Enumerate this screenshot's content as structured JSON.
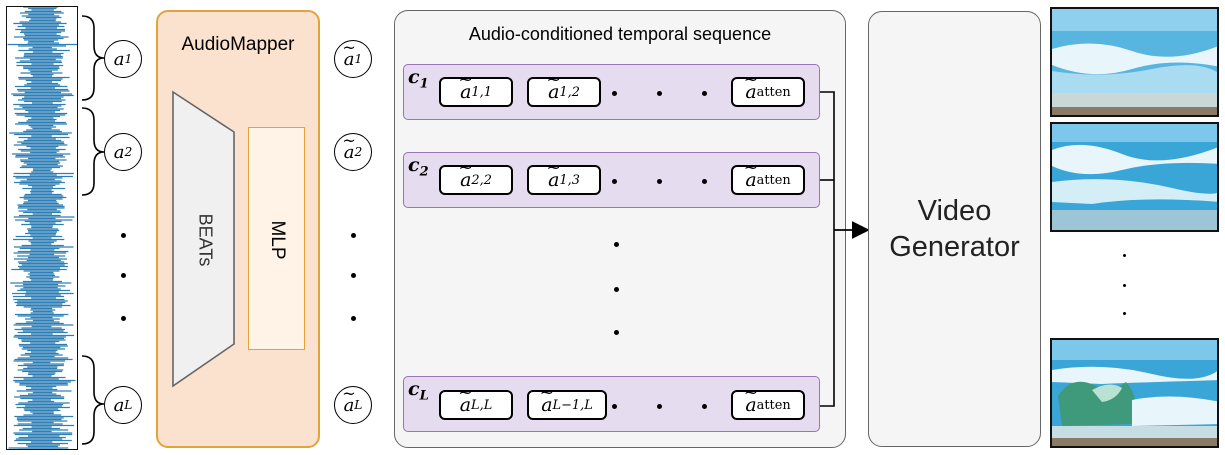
{
  "audiomapper": {
    "title": "AudioMapper",
    "beats_label": "BEATs",
    "mlp_label": "MLP"
  },
  "sequence": {
    "title": "Audio-conditioned temporal sequence"
  },
  "generator": {
    "line1": "Video",
    "line2": "Generator"
  },
  "inputs": [
    {
      "base": "a",
      "sub": "1"
    },
    {
      "base": "a",
      "sub": "2"
    },
    {
      "base": "a",
      "sub": "L"
    }
  ],
  "mapped": [
    {
      "base": "a",
      "sub": "1"
    },
    {
      "base": "a",
      "sub": "2"
    },
    {
      "base": "a",
      "sub": "L"
    }
  ],
  "rows": [
    {
      "label_base": "c",
      "label_sub": "1",
      "tokens": [
        {
          "base": "a",
          "sub": "1,1"
        },
        {
          "base": "a",
          "sub": "1,2"
        }
      ],
      "last": {
        "base": "a",
        "sub": "atten"
      }
    },
    {
      "label_base": "c",
      "label_sub": "2",
      "tokens": [
        {
          "base": "a",
          "sub": "2,2"
        },
        {
          "base": "a",
          "sub": "1,3"
        }
      ],
      "last": {
        "base": "a",
        "sub": "atten"
      }
    },
    {
      "label_base": "c",
      "label_sub": "L",
      "tokens": [
        {
          "base": "a",
          "sub": "L,L"
        },
        {
          "base": "a",
          "sub": "L−1,L"
        }
      ],
      "last": {
        "base": "a",
        "sub": "atten"
      }
    }
  ],
  "colors": {
    "audiomapper_fill": "#fbe2cf",
    "audiomapper_border": "#e2a33c",
    "mlp_fill": "#fff2e6",
    "beats_fill": "#f0f0f0",
    "panel_fill": "#f5f5f5",
    "row_fill": "#e5dcef",
    "row_border": "#9b73b6",
    "waveform": "#2e7fb5",
    "water": "#3aa6d8",
    "foam": "#e8f6fb",
    "sand": "#8a7a66"
  }
}
